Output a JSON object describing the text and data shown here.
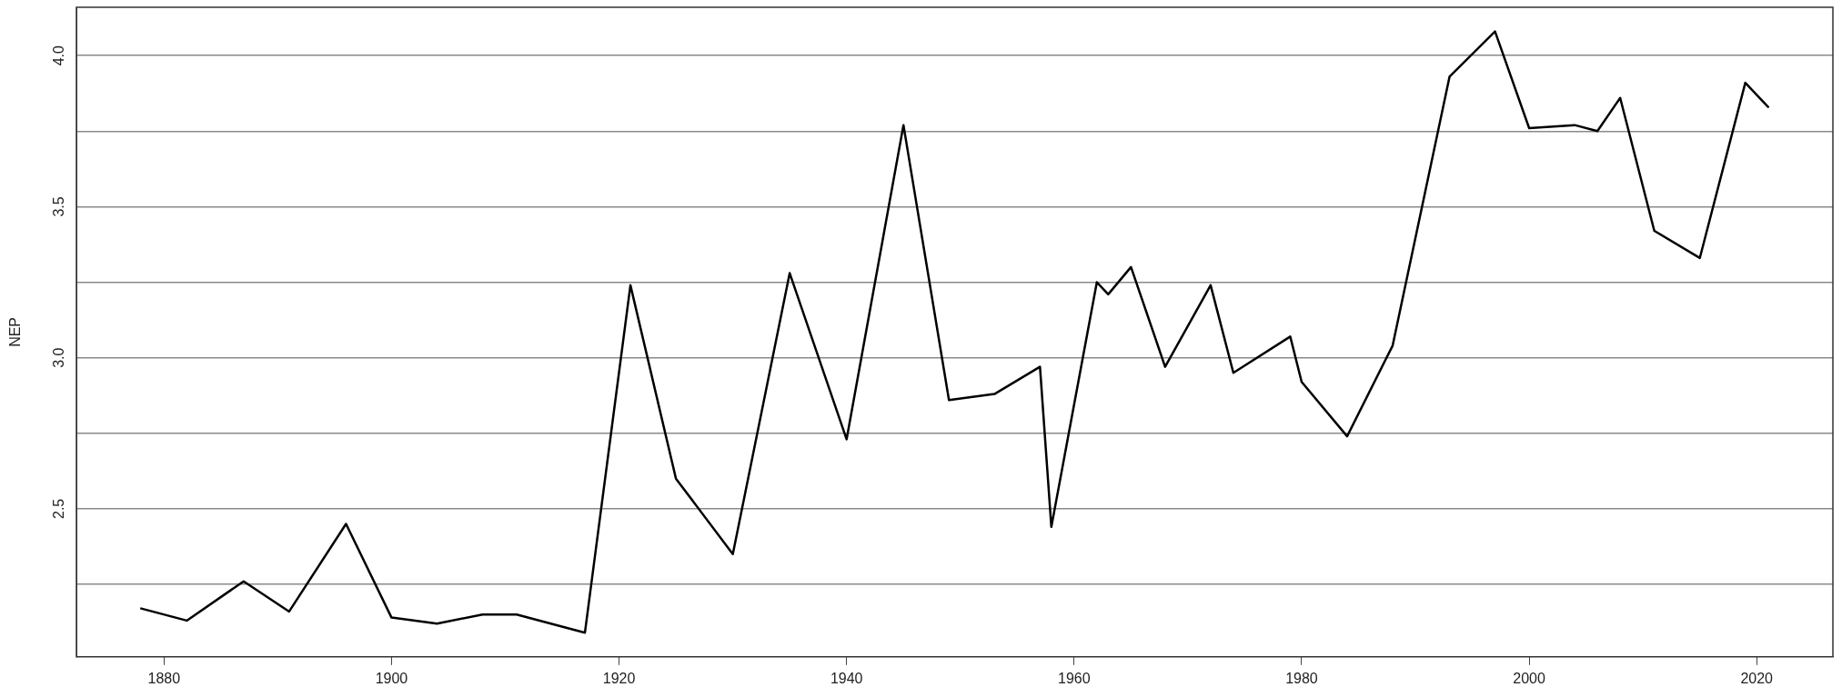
{
  "chart_data": {
    "type": "line",
    "ylabel": "NEP",
    "x": [
      1878,
      1882,
      1887,
      1891,
      1896,
      1900,
      1904,
      1908,
      1911,
      1917,
      1921,
      1925,
      1930,
      1935,
      1940,
      1945,
      1949,
      1953,
      1957,
      1958,
      1962,
      1963,
      1965,
      1968,
      1972,
      1974,
      1979,
      1980,
      1984,
      1988,
      1993,
      1997,
      2000,
      2004,
      2006,
      2008,
      2011,
      2015,
      2019,
      2021
    ],
    "series": [
      {
        "color": "#000000",
        "values": [
          2.17,
          2.13,
          2.26,
          2.16,
          2.45,
          2.14,
          2.12,
          2.15,
          2.15,
          2.09,
          3.24,
          2.6,
          2.35,
          3.28,
          2.73,
          3.77,
          2.86,
          2.88,
          2.97,
          2.44,
          3.25,
          3.21,
          3.3,
          2.97,
          3.24,
          2.95,
          3.07,
          2.92,
          2.74,
          3.04,
          3.93,
          4.08,
          3.76,
          3.77,
          3.75,
          3.86,
          3.42,
          3.33,
          3.91,
          3.83
        ]
      }
    ],
    "xlim": [
      1872.3,
      2026.7
    ],
    "xticks": [
      1880,
      1900,
      1920,
      1940,
      1960,
      1980,
      2000,
      2020
    ],
    "ylim": [
      2.01,
      4.16
    ],
    "yticks": [
      {
        "value": 2.25,
        "label": null
      },
      {
        "value": 2.5,
        "label": "2.5"
      },
      {
        "value": 2.75,
        "label": null
      },
      {
        "value": 3.0,
        "label": "3.0"
      },
      {
        "value": 3.25,
        "label": null
      },
      {
        "value": 3.5,
        "label": "3.5"
      },
      {
        "value": 3.75,
        "label": null
      },
      {
        "value": 4.0,
        "label": "4.0"
      }
    ],
    "grid": "y",
    "legend": false,
    "marker": "none",
    "line_style": "solid"
  }
}
